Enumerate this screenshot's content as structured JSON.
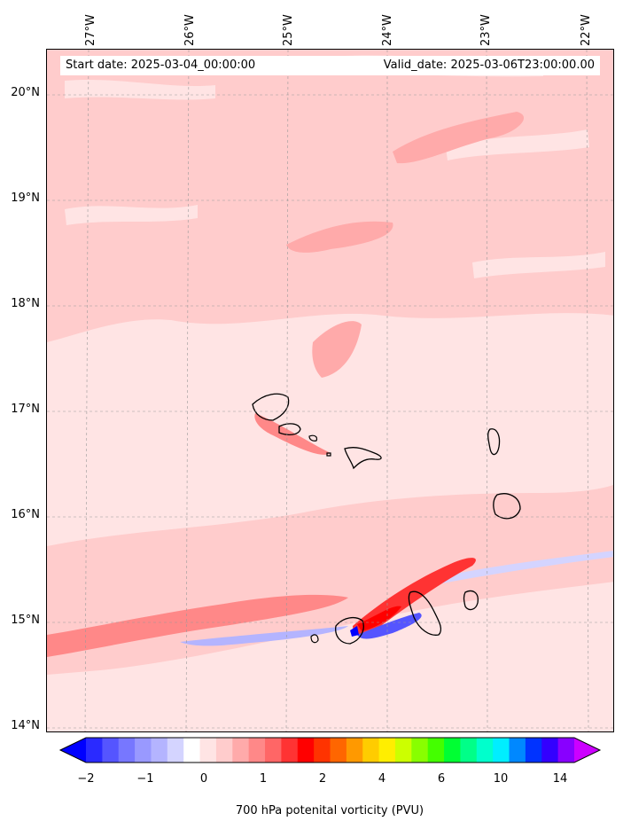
{
  "header": {
    "start_date": "Start date: 2025-03-04_00:00:00",
    "valid_date": "Valid_date: 2025-03-06T23:00:00.00"
  },
  "map": {
    "lon_labels": [
      "27°W",
      "26°W",
      "25°W",
      "24°W",
      "23°W",
      "22°W"
    ],
    "lat_labels": [
      "20°N",
      "19°N",
      "18°N",
      "17°N",
      "16°N",
      "15°N",
      "14°N"
    ],
    "lat_range": [
      13.95,
      20.4
    ],
    "lon_range": [
      -27.4,
      -21.8
    ],
    "gridlines": true,
    "islands": [
      "Santo Antão",
      "São Vicente",
      "Santa Luzia",
      "São Nicolau",
      "Sal",
      "Boa Vista",
      "Maio",
      "Santiago",
      "Fogo",
      "Brava"
    ]
  },
  "colorbar": {
    "label": "700 hPa potenital vorticity (PVU)",
    "ticks": [
      "−2",
      "−1",
      "0",
      "1",
      "2",
      "4",
      "6",
      "10",
      "14"
    ],
    "colors": [
      "#0000ff",
      "#2a2aff",
      "#5555ff",
      "#7777ff",
      "#9999ff",
      "#b4b4ff",
      "#d4d4ff",
      "#ffffff",
      "#ffe4e4",
      "#ffcccc",
      "#ffaaaa",
      "#ff8888",
      "#ff6666",
      "#ff3333",
      "#ff0000",
      "#ff3300",
      "#ff6600",
      "#ff9900",
      "#ffcc00",
      "#ffee00",
      "#ccff00",
      "#88ff00",
      "#44ff00",
      "#00ff33",
      "#00ff88",
      "#00ffcc",
      "#00eeff",
      "#0088ff",
      "#0033ff",
      "#3300ff",
      "#8800ff",
      "#cc00ff"
    ]
  }
}
